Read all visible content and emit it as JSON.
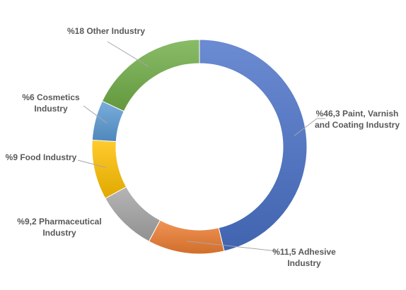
{
  "chart_data": {
    "type": "pie",
    "variant": "donut",
    "slices": [
      {
        "value": 46.3,
        "label_lines": [
          "%46,3 Paint, Varnish",
          "and Coating Industry"
        ],
        "color": "#4a72c8"
      },
      {
        "value": 11.5,
        "label_lines": [
          "%11,5 Adhesive",
          "Industry"
        ],
        "color": "#ed7d31"
      },
      {
        "value": 9.2,
        "label_lines": [
          "%9,2 Pharmaceutical",
          "Industry"
        ],
        "color": "#a5a5a5"
      },
      {
        "value": 9,
        "label_lines": [
          "%9 Food Industry"
        ],
        "color": "#ffc000"
      },
      {
        "value": 6,
        "label_lines": [
          "%6 Cosmetics",
          "Industry"
        ],
        "color": "#5b9bd5"
      },
      {
        "value": 18,
        "label_lines": [
          "%18 Other Industry"
        ],
        "color": "#70ad47"
      }
    ],
    "legend": "none",
    "data_labels": "outside with leader lines"
  }
}
